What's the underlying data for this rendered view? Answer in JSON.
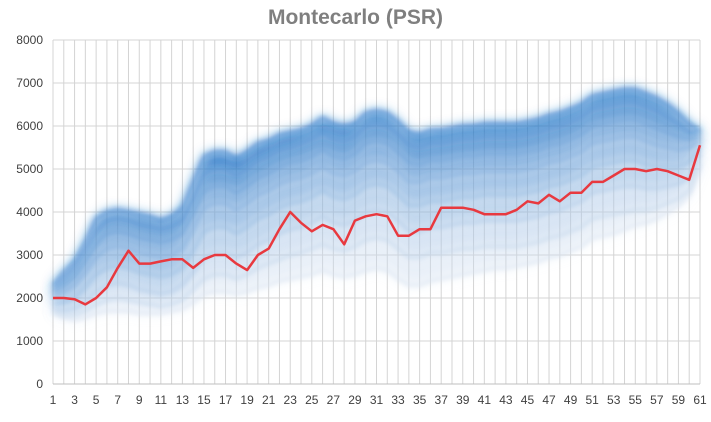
{
  "chart_data": {
    "type": "line",
    "title": "Montecarlo (PSR)",
    "xlabel": "",
    "ylabel": "",
    "ylim": [
      0,
      8000
    ],
    "yticks": [
      0,
      1000,
      2000,
      3000,
      4000,
      5000,
      6000,
      7000,
      8000
    ],
    "x": [
      1,
      2,
      3,
      4,
      5,
      6,
      7,
      8,
      9,
      10,
      11,
      12,
      13,
      14,
      15,
      16,
      17,
      18,
      19,
      20,
      21,
      22,
      23,
      24,
      25,
      26,
      27,
      28,
      29,
      30,
      31,
      32,
      33,
      34,
      35,
      36,
      37,
      38,
      39,
      40,
      41,
      42,
      43,
      44,
      45,
      46,
      47,
      48,
      49,
      50,
      51,
      52,
      53,
      54,
      55,
      56,
      57,
      58,
      59,
      60,
      61
    ],
    "xtick_labels": [
      "1",
      "3",
      "5",
      "7",
      "9",
      "11",
      "13",
      "15",
      "17",
      "19",
      "21",
      "23",
      "25",
      "27",
      "29",
      "31",
      "33",
      "35",
      "37",
      "39",
      "41",
      "43",
      "45",
      "47",
      "49",
      "51",
      "53",
      "55",
      "57",
      "59",
      "61"
    ],
    "grid": true,
    "colors": {
      "highlight": "#e8393f",
      "band_dark": "#1a6fc4",
      "band_light": "#c9d9ee",
      "title": "#7f7f7f"
    },
    "series": [
      {
        "values": [
          2000,
          2000,
          1970,
          1850,
          2000,
          2250,
          2700,
          3100,
          2800,
          2800,
          2850,
          2900,
          2900,
          2700,
          2900,
          3000,
          3000,
          2800,
          2650,
          3000,
          3150,
          3600,
          4000,
          3750,
          3550,
          3700,
          3600,
          3250,
          3800,
          3900,
          3950,
          3900,
          3450,
          3450,
          3600,
          3600,
          4100,
          4100,
          4100,
          4050,
          3950,
          3950,
          3950,
          4050,
          4250,
          4200,
          4400,
          4250,
          4450,
          4450,
          4700,
          4700,
          4850,
          5000,
          5000,
          4950,
          5000,
          4950,
          4850,
          4750,
          5550
        ]
      },
      {
        "values": [
          2300,
          2600,
          2850,
          3300,
          3850,
          4000,
          4050,
          4000,
          3950,
          3900,
          3800,
          3900,
          4100,
          4700,
          5300,
          5400,
          5400,
          5250,
          5400,
          5600,
          5650,
          5800,
          5850,
          5900,
          6000,
          6200,
          6050,
          6000,
          6050,
          6300,
          6350,
          6300,
          6100,
          5850,
          5800,
          5900,
          5900,
          5950,
          6000,
          6000,
          6050,
          6050,
          6050,
          6050,
          6100,
          6150,
          6250,
          6300,
          6400,
          6500,
          6700,
          6750,
          6800,
          6850,
          6850,
          6750,
          6650,
          6500,
          6300,
          6050,
          5900
        ]
      },
      {
        "values": [
          2200,
          2450,
          2700,
          3100,
          3550,
          3800,
          3850,
          3800,
          3700,
          3650,
          3600,
          3650,
          3800,
          4300,
          4900,
          5000,
          5000,
          4850,
          5000,
          5200,
          5300,
          5450,
          5500,
          5600,
          5700,
          5850,
          5700,
          5650,
          5750,
          6000,
          6050,
          6000,
          5800,
          5550,
          5500,
          5600,
          5600,
          5650,
          5700,
          5700,
          5750,
          5750,
          5750,
          5750,
          5800,
          5850,
          5950,
          6000,
          6100,
          6200,
          6400,
          6450,
          6500,
          6550,
          6550,
          6450,
          6350,
          6200,
          6050,
          5850,
          5850
        ]
      },
      {
        "values": [
          2100,
          2300,
          2500,
          2850,
          3250,
          3500,
          3550,
          3500,
          3400,
          3350,
          3300,
          3350,
          3500,
          3950,
          4500,
          4600,
          4600,
          4450,
          4600,
          4800,
          4900,
          5050,
          5150,
          5200,
          5300,
          5450,
          5300,
          5250,
          5350,
          5600,
          5650,
          5600,
          5400,
          5150,
          5100,
          5200,
          5200,
          5250,
          5300,
          5300,
          5350,
          5350,
          5350,
          5350,
          5400,
          5450,
          5550,
          5600,
          5700,
          5800,
          6000,
          6050,
          6100,
          6150,
          6150,
          6050,
          5950,
          5850,
          5750,
          5700,
          5750
        ]
      },
      {
        "values": [
          2000,
          2150,
          2300,
          2600,
          2950,
          3150,
          3200,
          3150,
          3050,
          3000,
          2950,
          3000,
          3150,
          3600,
          4100,
          4200,
          4200,
          4050,
          4200,
          4400,
          4500,
          4650,
          4750,
          4800,
          4900,
          5050,
          4900,
          4850,
          4950,
          5150,
          5200,
          5150,
          4950,
          4700,
          4700,
          4800,
          4800,
          4850,
          4900,
          4900,
          4950,
          4950,
          4950,
          4950,
          5000,
          5050,
          5150,
          5200,
          5300,
          5400,
          5600,
          5650,
          5700,
          5750,
          5750,
          5650,
          5550,
          5500,
          5450,
          5500,
          5650
        ]
      },
      {
        "values": [
          1850,
          1900,
          2000,
          2250,
          2550,
          2700,
          2750,
          2700,
          2600,
          2550,
          2500,
          2550,
          2700,
          3100,
          3550,
          3650,
          3650,
          3500,
          3650,
          3850,
          3950,
          4100,
          4200,
          4250,
          4350,
          4500,
          4350,
          4300,
          4400,
          4600,
          4650,
          4600,
          4400,
          4150,
          4150,
          4250,
          4250,
          4300,
          4350,
          4350,
          4400,
          4400,
          4400,
          4400,
          4450,
          4500,
          4600,
          4650,
          4750,
          4850,
          5050,
          5100,
          5150,
          5200,
          5200,
          5100,
          5050,
          5050,
          5050,
          5150,
          5500
        ]
      },
      {
        "values": [
          1750,
          1700,
          1750,
          1900,
          2150,
          2300,
          2350,
          2300,
          2200,
          2150,
          2100,
          2150,
          2300,
          2600,
          2950,
          3050,
          3050,
          2950,
          3050,
          3250,
          3350,
          3500,
          3600,
          3650,
          3750,
          3900,
          3750,
          3700,
          3800,
          4000,
          4050,
          4000,
          3800,
          3550,
          3550,
          3650,
          3650,
          3700,
          3750,
          3750,
          3800,
          3800,
          3800,
          3800,
          3850,
          3900,
          4000,
          4050,
          4150,
          4250,
          4450,
          4500,
          4550,
          4600,
          4600,
          4550,
          4550,
          4600,
          4650,
          4800,
          5350
        ]
      },
      {
        "values": [
          1700,
          1600,
          1600,
          1700,
          1850,
          1950,
          2000,
          1950,
          1900,
          1850,
          1800,
          1850,
          1950,
          2200,
          2450,
          2550,
          2550,
          2450,
          2550,
          2700,
          2800,
          2900,
          3000,
          3050,
          3150,
          3250,
          3150,
          3100,
          3200,
          3350,
          3400,
          3350,
          3150,
          2950,
          2950,
          3050,
          3050,
          3100,
          3150,
          3150,
          3200,
          3200,
          3200,
          3200,
          3250,
          3300,
          3400,
          3450,
          3550,
          3650,
          3850,
          3900,
          3950,
          4000,
          4050,
          4050,
          4100,
          4200,
          4300,
          4500,
          5150
        ]
      },
      {
        "values": [
          1650,
          1550,
          1500,
          1550,
          1650,
          1700,
          1700,
          1700,
          1650,
          1650,
          1650,
          1700,
          1750,
          1900,
          2100,
          2150,
          2150,
          2100,
          2150,
          2250,
          2300,
          2400,
          2450,
          2500,
          2550,
          2650,
          2550,
          2500,
          2550,
          2650,
          2700,
          2650,
          2450,
          2300,
          2300,
          2400,
          2450,
          2500,
          2550,
          2600,
          2650,
          2700,
          2700,
          2750,
          2800,
          2850,
          2950,
          3000,
          3100,
          3200,
          3400,
          3450,
          3500,
          3600,
          3700,
          3750,
          3850,
          4000,
          4150,
          4400,
          5050
        ]
      }
    ]
  }
}
